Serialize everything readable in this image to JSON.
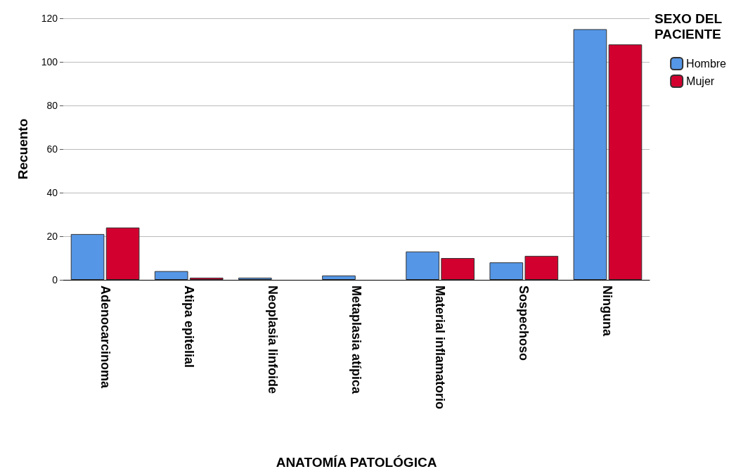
{
  "chart_data": {
    "type": "bar",
    "xlabel": "ANATOMÍA PATOLÓGICA",
    "ylabel": "Recuento",
    "legend_title": "SEXO DEL PACIENTE",
    "categories": [
      "Adenocarcinoma",
      "Atipa epitelial",
      "Neoplasia linfoide",
      "Metaplasia atípica",
      "Material inflamatorio",
      "Sospechoso",
      "Ninguna"
    ],
    "series": [
      {
        "name": "Hombre",
        "color": "#5596e6",
        "values": [
          21,
          4,
          1,
          2,
          13,
          8,
          115
        ]
      },
      {
        "name": "Mujer",
        "color": "#d2002f",
        "values": [
          24,
          1,
          null,
          null,
          10,
          11,
          108
        ]
      }
    ],
    "ylim": [
      0,
      120
    ],
    "yticks": [
      0,
      20,
      40,
      60,
      80,
      100,
      120
    ],
    "grid": "y",
    "legend": "top right"
  }
}
